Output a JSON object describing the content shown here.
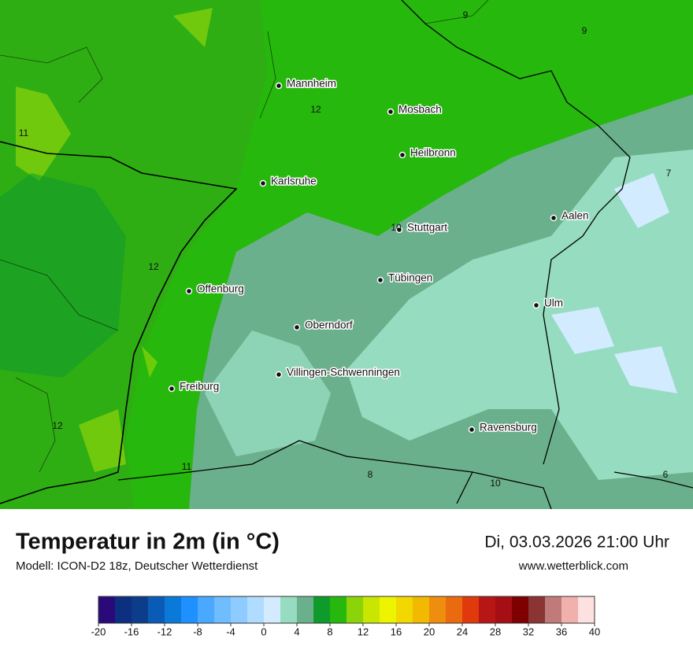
{
  "map": {
    "cities": [
      "Mannheim",
      "Mosbach",
      "Heilbronn",
      "Karlsruhe",
      "Stuttgart",
      "Aalen",
      "Tübingen",
      "Ulm",
      "Offenburg",
      "Oberndorf",
      "Villingen-Schwenningen",
      "Freiburg",
      "Ravensburg"
    ],
    "isotherm_labels": [
      9,
      9,
      12,
      11,
      7,
      10,
      12,
      12,
      11,
      8,
      10,
      6
    ]
  },
  "footer": {
    "title": "Temperatur in 2m (in °C)",
    "subtitle": "Modell: ICON-D2 18z, Deutscher Wetterdienst",
    "datetime": "Di, 03.03.2026 21:00 Uhr",
    "website": "www.wetterblick.com"
  },
  "legend": {
    "range": [
      -20,
      40
    ],
    "colors": [
      "#2a0a7a",
      "#0d2f80",
      "#0b3d8a",
      "#0a5bb5",
      "#0a79d8",
      "#1e90ff",
      "#4aa8ff",
      "#6fbcff",
      "#8ecbff",
      "#b0dcff",
      "#d2ebff",
      "#96dcc0",
      "#6bb08c",
      "#0e9b2c",
      "#26b80c",
      "#8cd40a",
      "#c8e600",
      "#ecf400",
      "#f3d700",
      "#f1b900",
      "#ee8d0e",
      "#ea6a0f",
      "#e03a0c",
      "#b81515",
      "#a50f14",
      "#7e0000",
      "#8b3434",
      "#c07a7a",
      "#f0b0ac",
      "#fde0e0"
    ],
    "ticks": [
      -20,
      -16,
      -12,
      -8,
      -4,
      0,
      4,
      8,
      12,
      16,
      20,
      24,
      28,
      32,
      36,
      40
    ]
  }
}
